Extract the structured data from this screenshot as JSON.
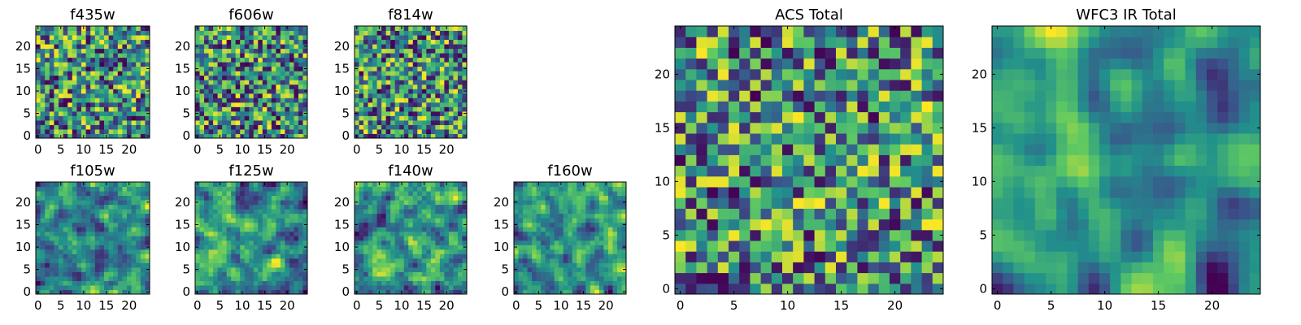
{
  "figure": {
    "colormap": "viridis",
    "colors": [
      "#440154",
      "#3b528b",
      "#21918c",
      "#5ec962",
      "#fde725"
    ]
  },
  "chart_data": [
    {
      "type": "heatmap",
      "title": "f435w",
      "grid": [
        25,
        25
      ],
      "xticks": [
        "0",
        "5",
        "10",
        "15",
        "20"
      ],
      "yticks": [
        "0",
        "5",
        "10",
        "15",
        "20"
      ],
      "seed": 11,
      "smooth": 0
    },
    {
      "type": "heatmap",
      "title": "f606w",
      "grid": [
        25,
        25
      ],
      "xticks": [
        "0",
        "5",
        "10",
        "15",
        "20"
      ],
      "yticks": [
        "0",
        "5",
        "10",
        "15",
        "20"
      ],
      "seed": 23,
      "smooth": 0
    },
    {
      "type": "heatmap",
      "title": "f814w",
      "grid": [
        25,
        25
      ],
      "xticks": [
        "0",
        "5",
        "10",
        "15",
        "20"
      ],
      "yticks": [
        "0",
        "5",
        "10",
        "15",
        "20"
      ],
      "seed": 37,
      "smooth": 0
    },
    {
      "type": "heatmap",
      "title": "f105w",
      "grid": [
        25,
        25
      ],
      "xticks": [
        "0",
        "5",
        "10",
        "15",
        "20"
      ],
      "yticks": [
        "0",
        "5",
        "10",
        "15",
        "20"
      ],
      "seed": 41,
      "smooth": 1
    },
    {
      "type": "heatmap",
      "title": "f125w",
      "grid": [
        25,
        25
      ],
      "xticks": [
        "0",
        "5",
        "10",
        "15",
        "20"
      ],
      "yticks": [
        "0",
        "5",
        "10",
        "15",
        "20"
      ],
      "seed": 53,
      "smooth": 1
    },
    {
      "type": "heatmap",
      "title": "f140w",
      "grid": [
        25,
        25
      ],
      "xticks": [
        "0",
        "5",
        "10",
        "15",
        "20"
      ],
      "yticks": [
        "0",
        "5",
        "10",
        "15",
        "20"
      ],
      "seed": 67,
      "smooth": 1
    },
    {
      "type": "heatmap",
      "title": "f160w",
      "grid": [
        25,
        25
      ],
      "xticks": [
        "0",
        "5",
        "10",
        "15",
        "20"
      ],
      "yticks": [
        "0",
        "5",
        "10",
        "15",
        "20"
      ],
      "seed": 79,
      "smooth": 1
    },
    {
      "type": "heatmap",
      "title": "ACS Total",
      "grid": [
        25,
        25
      ],
      "xticks": [
        "0",
        "5",
        "10",
        "15",
        "20"
      ],
      "yticks": [
        "0",
        "5",
        "10",
        "15",
        "20"
      ],
      "seed": 97,
      "smooth": 0
    },
    {
      "type": "heatmap",
      "title": "WFC3 IR Total",
      "grid": [
        25,
        25
      ],
      "xticks": [
        "0",
        "5",
        "10",
        "15",
        "20"
      ],
      "yticks": [
        "0",
        "5",
        "10",
        "15",
        "20"
      ],
      "seed": 131,
      "smooth": 2
    }
  ]
}
